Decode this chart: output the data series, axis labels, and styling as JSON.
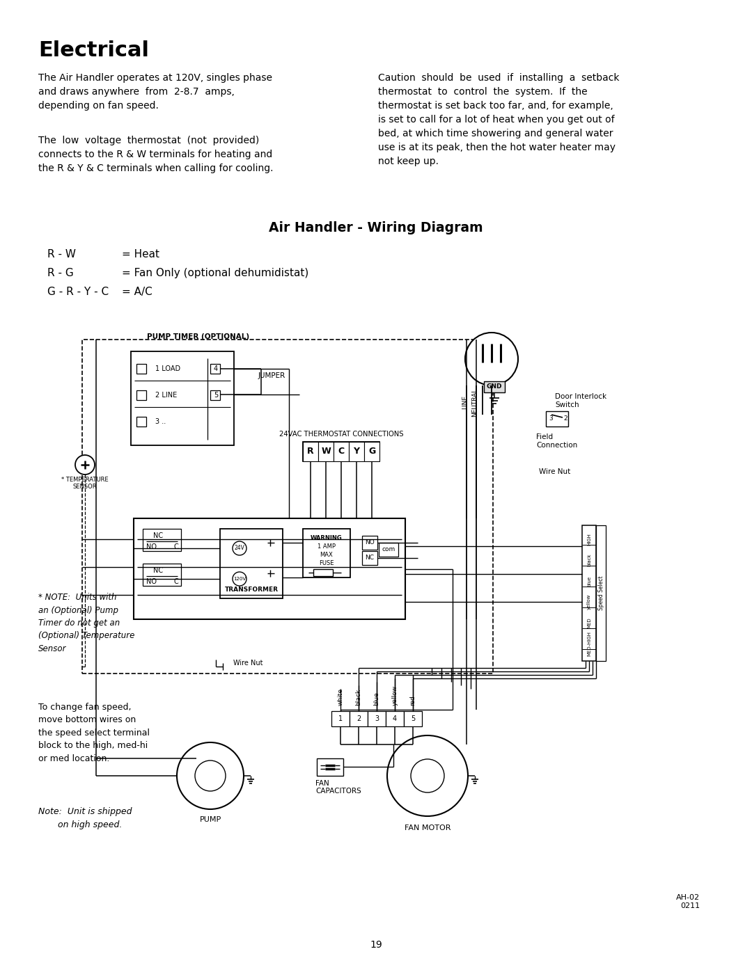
{
  "title": "Electrical",
  "subtitle": "Air Handler - Wiring Diagram",
  "bg_color": "#ffffff",
  "text_color": "#000000",
  "para1_left": "The Air Handler operates at 120V, singles phase\nand draws anywhere  from  2-8.7  amps,\ndepending on fan speed.",
  "para2_left": "The  low  voltage  thermostat  (not  provided)\nconnects to the R & W terminals for heating and\nthe R & Y & C terminals when calling for cooling.",
  "para1_right": "Caution  should  be  used  if  installing  a  setback\nthermostat  to  control  the  system.  If  the\nthermostat is set back too far, and, for example,\nis set to call for a lot of heat when you get out of\nbed, at which time showering and general water\nuse is at its peak, then the hot water heater may\nnot keep up.",
  "legend_line1_key": "R - W",
  "legend_line1_val": "= Heat",
  "legend_line2_key": "R - G",
  "legend_line2_val": "= Fan Only (optional dehumidistat)",
  "legend_line3_key": "G - R - Y - C",
  "legend_line3_val": "= A/C",
  "note_pump": "* NOTE:  Units with\nan (Optional) Pump\nTimer do not get an\n(Optional) Temperature\nSensor",
  "note_fan_speed": "To change fan speed,\nmove bottom wires on\nthe speed select terminal\nblock to the high, med-hi\nor med location.",
  "note_shipped": "Note:  Unit is shipped\n       on high speed.",
  "page_number": "19",
  "model_ref": "AH-02\n0211"
}
